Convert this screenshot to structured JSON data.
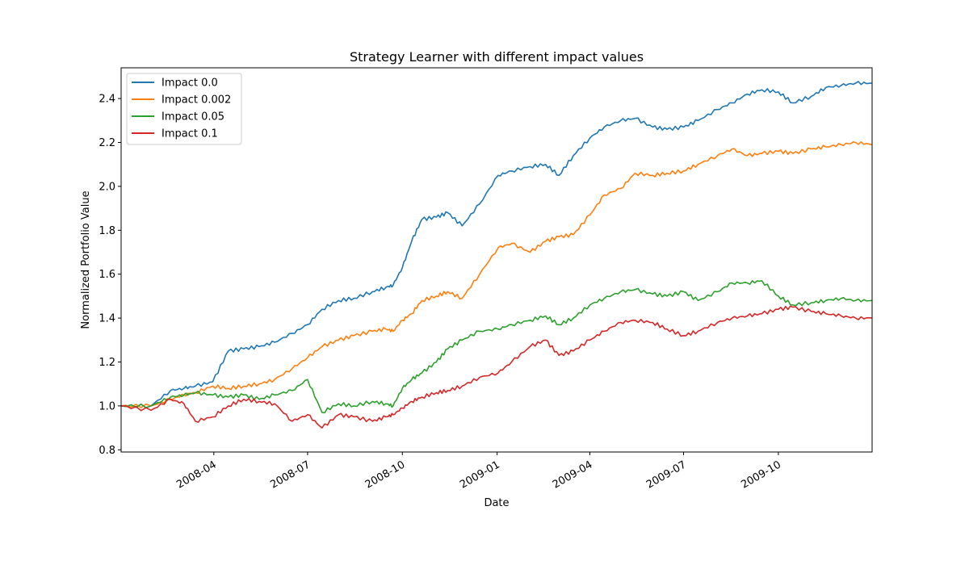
{
  "chart_data": {
    "type": "line",
    "title": "Strategy Learner with different impact values",
    "xlabel": "Date",
    "ylabel": "Normalized Portfolio Value",
    "xlim": [
      "2008-01-02",
      "2009-12-31"
    ],
    "ylim": [
      0.79,
      2.54
    ],
    "yticks": [
      0.8,
      1.0,
      1.2,
      1.4,
      1.6,
      1.8,
      2.0,
      2.2,
      2.4
    ],
    "ytick_labels": [
      "0.8",
      "1.0",
      "1.2",
      "1.4",
      "1.6",
      "1.8",
      "2.0",
      "2.2",
      "2.4"
    ],
    "xticks": [
      "2008-04-01",
      "2008-07-01",
      "2008-10-01",
      "2009-01-01",
      "2009-04-01",
      "2009-07-01",
      "2009-10-01"
    ],
    "xtick_labels": [
      "2008-04",
      "2008-07",
      "2008-10",
      "2009-01",
      "2009-04",
      "2009-07",
      "2009-10"
    ],
    "legend_position": "top-left",
    "grid": false,
    "x": [
      "2008-01-02",
      "2008-01-31",
      "2008-02-19",
      "2008-03-03",
      "2008-03-14",
      "2008-03-31",
      "2008-04-15",
      "2008-04-30",
      "2008-05-15",
      "2008-05-30",
      "2008-06-16",
      "2008-07-01",
      "2008-07-15",
      "2008-07-31",
      "2008-08-15",
      "2008-09-02",
      "2008-09-15",
      "2008-09-22",
      "2008-10-01",
      "2008-10-10",
      "2008-10-20",
      "2008-11-03",
      "2008-11-14",
      "2008-11-28",
      "2008-12-15",
      "2009-01-02",
      "2009-01-15",
      "2009-02-02",
      "2009-02-17",
      "2009-03-02",
      "2009-03-16",
      "2009-04-01",
      "2009-04-15",
      "2009-05-01",
      "2009-05-15",
      "2009-06-01",
      "2009-06-15",
      "2009-07-01",
      "2009-07-15",
      "2009-08-03",
      "2009-08-17",
      "2009-09-01",
      "2009-09-15",
      "2009-10-01",
      "2009-10-15",
      "2009-11-02",
      "2009-11-16",
      "2009-12-01",
      "2009-12-15",
      "2009-12-31"
    ],
    "series": [
      {
        "name": "Impact 0.0",
        "color": "#1f77b4",
        "values": [
          1.0,
          1.0,
          1.07,
          1.08,
          1.09,
          1.11,
          1.25,
          1.26,
          1.27,
          1.29,
          1.33,
          1.37,
          1.44,
          1.48,
          1.49,
          1.52,
          1.54,
          1.55,
          1.63,
          1.75,
          1.85,
          1.86,
          1.88,
          1.82,
          1.92,
          2.05,
          2.07,
          2.09,
          2.1,
          2.05,
          2.14,
          2.22,
          2.27,
          2.3,
          2.31,
          2.27,
          2.26,
          2.27,
          2.3,
          2.35,
          2.38,
          2.42,
          2.44,
          2.43,
          2.38,
          2.41,
          2.45,
          2.46,
          2.47,
          2.47
        ]
      },
      {
        "name": "Impact 0.002",
        "color": "#ff7f0e",
        "values": [
          1.0,
          1.0,
          1.03,
          1.05,
          1.06,
          1.09,
          1.08,
          1.09,
          1.1,
          1.12,
          1.17,
          1.22,
          1.27,
          1.3,
          1.32,
          1.34,
          1.35,
          1.34,
          1.39,
          1.42,
          1.48,
          1.5,
          1.52,
          1.49,
          1.6,
          1.72,
          1.74,
          1.7,
          1.75,
          1.77,
          1.78,
          1.87,
          1.96,
          1.99,
          2.06,
          2.05,
          2.06,
          2.07,
          2.1,
          2.14,
          2.17,
          2.14,
          2.15,
          2.16,
          2.15,
          2.17,
          2.18,
          2.19,
          2.2,
          2.19
        ]
      },
      {
        "name": "Impact 0.05",
        "color": "#2ca02c",
        "values": [
          1.0,
          1.0,
          1.04,
          1.05,
          1.06,
          1.05,
          1.04,
          1.05,
          1.03,
          1.05,
          1.07,
          1.12,
          0.97,
          1.01,
          1.0,
          1.02,
          1.01,
          1.0,
          1.08,
          1.12,
          1.15,
          1.2,
          1.26,
          1.3,
          1.34,
          1.35,
          1.37,
          1.39,
          1.41,
          1.37,
          1.4,
          1.46,
          1.49,
          1.52,
          1.53,
          1.51,
          1.5,
          1.52,
          1.48,
          1.52,
          1.56,
          1.56,
          1.57,
          1.5,
          1.46,
          1.47,
          1.48,
          1.49,
          1.48,
          1.48
        ]
      },
      {
        "name": "Impact 0.1",
        "color": "#d62728",
        "values": [
          1.0,
          0.98,
          1.03,
          1.01,
          0.93,
          0.95,
          1.0,
          1.03,
          1.02,
          1.01,
          0.93,
          0.96,
          0.9,
          0.96,
          0.95,
          0.93,
          0.95,
          0.96,
          0.99,
          1.02,
          1.04,
          1.06,
          1.07,
          1.09,
          1.13,
          1.15,
          1.2,
          1.27,
          1.3,
          1.23,
          1.25,
          1.3,
          1.34,
          1.38,
          1.39,
          1.38,
          1.35,
          1.32,
          1.34,
          1.38,
          1.4,
          1.41,
          1.42,
          1.44,
          1.45,
          1.43,
          1.42,
          1.41,
          1.4,
          1.4
        ]
      }
    ]
  }
}
